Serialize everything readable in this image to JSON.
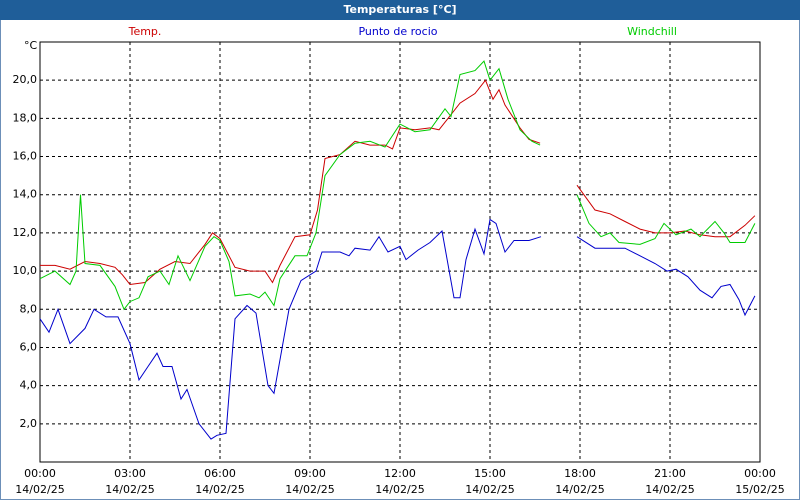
{
  "chart_data": {
    "type": "line",
    "title": "Temperaturas [°C]",
    "y_unit": "°C",
    "xlim": [
      0,
      24
    ],
    "ylim": [
      0,
      22
    ],
    "grid": true,
    "xticks": [
      {
        "value": 0,
        "label": "00:00"
      },
      {
        "value": 3,
        "label": "03:00"
      },
      {
        "value": 6,
        "label": "06:00"
      },
      {
        "value": 9,
        "label": "09:00"
      },
      {
        "value": 12,
        "label": "12:00"
      },
      {
        "value": 15,
        "label": "15:00"
      },
      {
        "value": 18,
        "label": "18:00"
      },
      {
        "value": 21,
        "label": "21:00"
      },
      {
        "value": 24,
        "label": "00:00"
      }
    ],
    "xtick_dates": [
      "14/02/25",
      "14/02/25",
      "14/02/25",
      "14/02/25",
      "14/02/25",
      "14/02/25",
      "14/02/25",
      "14/02/25",
      "15/02/25"
    ],
    "yticks": [
      {
        "value": 2,
        "label": "2,0"
      },
      {
        "value": 4,
        "label": "4,0"
      },
      {
        "value": 6,
        "label": "6,0"
      },
      {
        "value": 8,
        "label": "8,0"
      },
      {
        "value": 10,
        "label": "10,0"
      },
      {
        "value": 12,
        "label": "12,0"
      },
      {
        "value": 14,
        "label": "14,0"
      },
      {
        "value": 16,
        "label": "16,0"
      },
      {
        "value": 18,
        "label": "18,0"
      },
      {
        "value": 20,
        "label": "20,0"
      }
    ],
    "series": [
      {
        "name": "Temp.",
        "color": "#cc0000",
        "x": [
          0,
          0.5,
          1,
          1.5,
          2,
          2.5,
          2.75,
          3,
          3.5,
          4,
          4.5,
          5,
          5.5,
          5.75,
          6,
          6.5,
          7,
          7.5,
          7.75,
          8,
          8.5,
          9,
          9.25,
          9.5,
          10,
          10.5,
          11,
          11.5,
          11.75,
          12,
          12.5,
          13,
          13.3,
          13.6,
          14,
          14.5,
          14.85,
          15.1,
          15.3,
          15.5,
          16,
          16.3,
          16.67,
          null,
          17.9,
          18.5,
          19,
          19.5,
          20,
          20.5,
          21,
          21.5,
          22,
          22.5,
          23,
          23.5,
          23.83
        ],
        "values": [
          10.3,
          10.3,
          10.1,
          10.5,
          10.4,
          10.2,
          9.8,
          9.3,
          9.4,
          10.1,
          10.5,
          10.4,
          11.4,
          12.0,
          11.7,
          10.2,
          10.0,
          10.0,
          9.4,
          10.3,
          11.8,
          11.9,
          13.2,
          15.9,
          16.1,
          16.8,
          16.6,
          16.6,
          16.4,
          17.5,
          17.4,
          17.5,
          17.4,
          18.0,
          18.8,
          19.3,
          20.0,
          19.0,
          19.5,
          18.7,
          17.5,
          16.9,
          16.7,
          null,
          14.5,
          13.2,
          13.0,
          12.6,
          12.2,
          12.0,
          12.0,
          12.1,
          11.9,
          11.8,
          11.8,
          12.4,
          12.9
        ]
      },
      {
        "name": "Punto de rocio",
        "color": "#0000cc",
        "x": [
          0,
          0.3,
          0.6,
          1,
          1.5,
          1.8,
          2.2,
          2.6,
          3,
          3.3,
          3.6,
          3.9,
          4.1,
          4.4,
          4.7,
          4.9,
          5.3,
          5.7,
          5.9,
          6.2,
          6.5,
          6.9,
          7.2,
          7.6,
          7.8,
          8.3,
          8.7,
          9.2,
          9.4,
          10,
          10.3,
          10.5,
          11,
          11.3,
          11.6,
          12,
          12.2,
          12.6,
          13,
          13.4,
          13.8,
          14,
          14.2,
          14.5,
          14.8,
          15,
          15.2,
          15.5,
          15.8,
          16.3,
          16.7,
          null,
          17.9,
          18.5,
          19,
          19.5,
          20,
          20.5,
          20.9,
          21.2,
          21.6,
          22,
          22.4,
          22.7,
          23,
          23.3,
          23.5,
          23.83
        ],
        "values": [
          7.5,
          6.8,
          8.0,
          6.2,
          7.0,
          8.0,
          7.6,
          7.6,
          6.2,
          4.3,
          5.0,
          5.7,
          5.0,
          5.0,
          3.3,
          3.8,
          2.0,
          1.2,
          1.4,
          1.5,
          7.5,
          8.2,
          7.8,
          4.0,
          3.6,
          8.0,
          9.5,
          10.0,
          11.0,
          11.0,
          10.8,
          11.2,
          11.1,
          11.8,
          11.0,
          11.3,
          10.6,
          11.1,
          11.5,
          12.1,
          8.6,
          8.6,
          10.6,
          12.2,
          10.9,
          12.7,
          12.5,
          11.0,
          11.6,
          11.6,
          11.8,
          null,
          11.8,
          11.2,
          11.2,
          11.2,
          10.8,
          10.4,
          10.0,
          10.1,
          9.7,
          9.0,
          8.6,
          9.2,
          9.3,
          8.5,
          7.7,
          8.7
        ]
      },
      {
        "name": "Windchill",
        "color": "#00cc00",
        "x": [
          0,
          0.5,
          1,
          1.2,
          1.35,
          1.5,
          2,
          2.5,
          2.8,
          3,
          3.3,
          3.6,
          4,
          4.3,
          4.6,
          5,
          5.5,
          5.8,
          6,
          6.3,
          6.5,
          7,
          7.3,
          7.5,
          7.8,
          8,
          8.5,
          8.9,
          9.2,
          9.5,
          10,
          10.5,
          11,
          11.5,
          12,
          12.5,
          13,
          13.5,
          13.7,
          14,
          14.5,
          14.8,
          15,
          15.3,
          15.6,
          16,
          16.4,
          16.67,
          null,
          17.9,
          18.3,
          18.7,
          19,
          19.3,
          20,
          20.5,
          20.8,
          21.2,
          21.7,
          22,
          22.5,
          22.8,
          23,
          23.5,
          23.83
        ],
        "values": [
          9.6,
          10.0,
          9.3,
          10.0,
          14.0,
          10.4,
          10.3,
          9.2,
          8.0,
          8.4,
          8.6,
          9.7,
          10.0,
          9.3,
          10.8,
          9.5,
          11.3,
          11.8,
          11.6,
          10.5,
          8.7,
          8.8,
          8.6,
          8.9,
          8.2,
          9.6,
          10.8,
          10.8,
          12.0,
          15.0,
          16.1,
          16.7,
          16.8,
          16.5,
          17.7,
          17.3,
          17.4,
          18.5,
          18.1,
          20.3,
          20.5,
          21.0,
          20.0,
          20.6,
          19.0,
          17.4,
          16.8,
          16.6,
          null,
          14.0,
          12.5,
          11.8,
          12.0,
          11.5,
          11.4,
          11.7,
          12.5,
          11.9,
          12.2,
          11.8,
          12.6,
          12.0,
          11.5,
          11.5,
          12.5
        ]
      }
    ]
  }
}
